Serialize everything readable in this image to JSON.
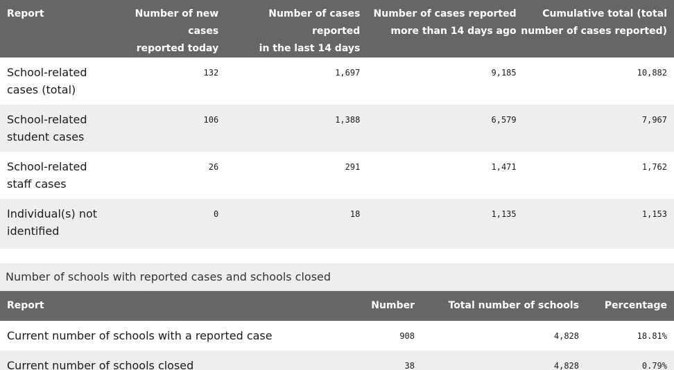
{
  "cases_table": {
    "headers": {
      "report": "Report",
      "new_today_line1": "Number of new cases",
      "new_today_line2": "reported today",
      "last14_line1": "Number of cases reported",
      "last14_line2": "in the last 14 days",
      "older_line1": "Number of cases reported",
      "older_line2": "more than 14 days ago",
      "cumulative_line1": "Cumulative total (total",
      "cumulative_line2": "number of cases reported)"
    },
    "rows": [
      {
        "label_line1": "School-related",
        "label_line2": "cases (total)",
        "new_today": "132",
        "last14": "1,697",
        "older": "9,185",
        "cumulative": "10,882"
      },
      {
        "label_line1": "School-related",
        "label_line2": "student cases",
        "new_today": "106",
        "last14": "1,388",
        "older": "6,579",
        "cumulative": "7,967"
      },
      {
        "label_line1": "School-related",
        "label_line2": "staff cases",
        "new_today": "26",
        "last14": "291",
        "older": "1,471",
        "cumulative": "1,762"
      },
      {
        "label_line1": "Individual(s) not",
        "label_line2": "identified",
        "new_today": "0",
        "last14": "18",
        "older": "1,135",
        "cumulative": "1,153"
      }
    ]
  },
  "schools_table": {
    "caption": "Number of schools with reported cases and schools closed",
    "headers": {
      "report": "Report",
      "number": "Number",
      "total": "Total number of schools",
      "percentage": "Percentage"
    },
    "rows": [
      {
        "label": "Current number of schools with a reported case",
        "number": "908",
        "total": "4,828",
        "percentage": "18.81%"
      },
      {
        "label": "Current number of schools closed",
        "number": "38",
        "total": "4,828",
        "percentage": "0.79%"
      }
    ]
  }
}
